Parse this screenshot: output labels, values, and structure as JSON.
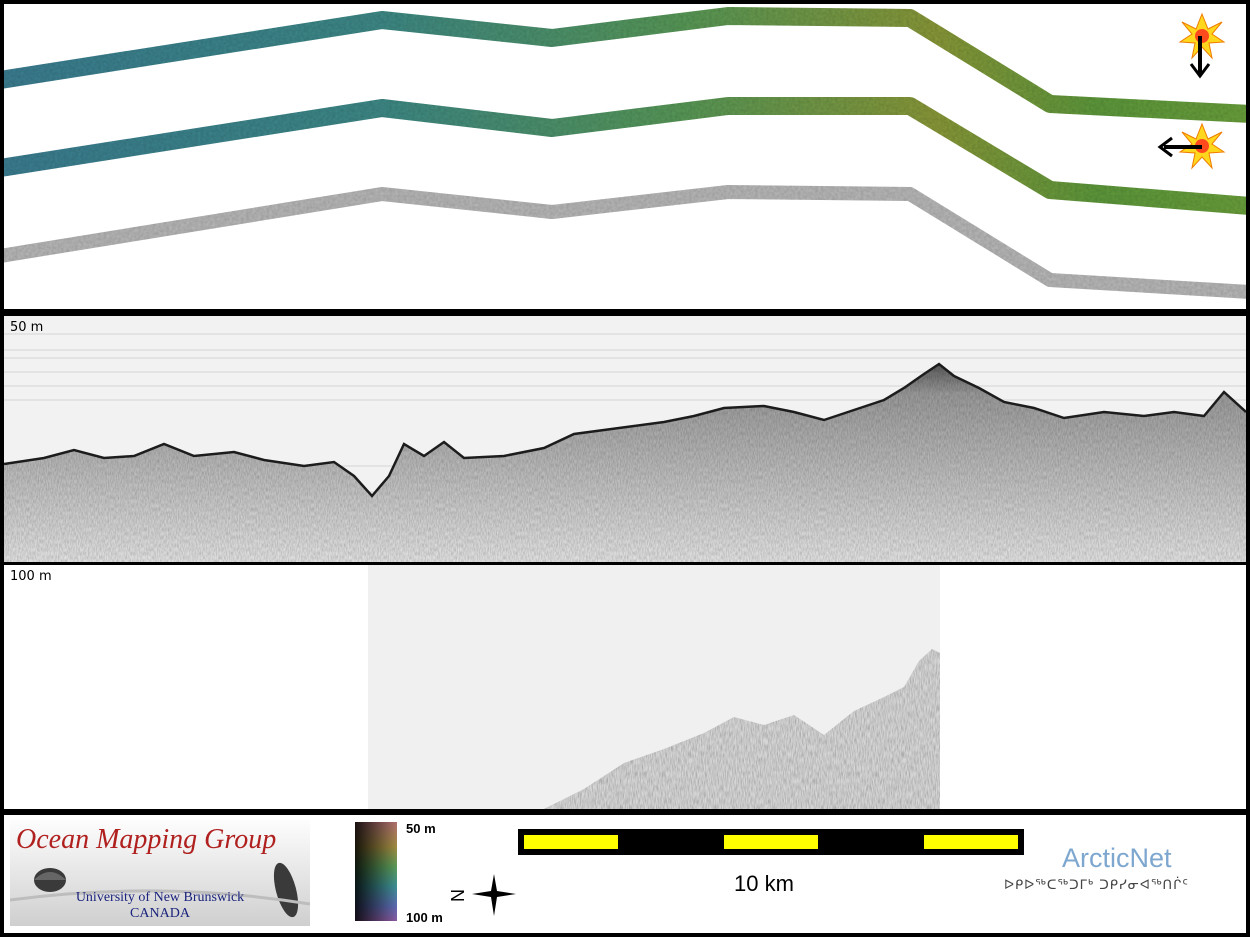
{
  "profile": {
    "top_label": "50 m",
    "bottom_label": "100 m"
  },
  "legend": {
    "logo": {
      "title": "Ocean Mapping Group",
      "university": "University of New Brunswick",
      "country": "CANADA"
    },
    "colorbar": {
      "top": "50 m",
      "bottom": "100 m"
    },
    "compass": {
      "north_letter": "N"
    },
    "scalebar": {
      "label": "10 km"
    },
    "partner": {
      "name": "ArcticNet",
      "syllabics": "ᐅᑭᐅᖅᑕᖅᑐᒥᒃ ᑐᑭᓯᓂᐊᖅᑎᒌᑦ"
    }
  },
  "colors": {
    "track_start": "#3d7f93",
    "track_mid": "#5a9a58",
    "track_end": "#6ba03c",
    "backscatter": "#b9b9b9",
    "sun": "#ffd81e",
    "scalebar_fill": "#ffff00"
  },
  "icons": [
    "sun-illumination-icon",
    "arrow-down-icon",
    "arrow-left-icon",
    "compass-star-icon"
  ]
}
